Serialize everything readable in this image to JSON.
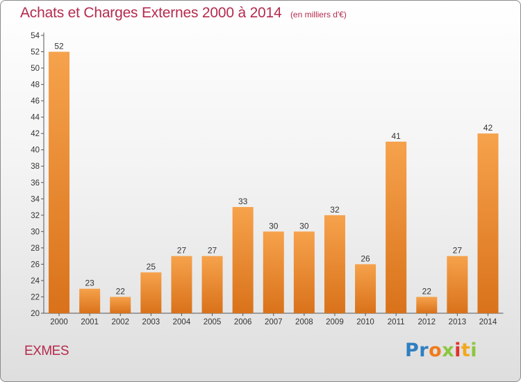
{
  "header": {
    "title": "Achats et Charges Externes 2000 à 2014",
    "unit": "(en milliers d'€)"
  },
  "commune": "EXMES",
  "logo": {
    "text": "Proxiti",
    "letters": [
      {
        "ch": "P",
        "color": "#2f7fc1"
      },
      {
        "ch": "r",
        "color": "#2f7fc1"
      },
      {
        "ch": "o",
        "color": "#f07b1b"
      },
      {
        "ch": "x",
        "color": "#8cc63f"
      },
      {
        "ch": "i",
        "color": "#e2312a"
      },
      {
        "ch": "t",
        "color": "#f2a81d"
      },
      {
        "ch": "i",
        "color": "#8cc63f"
      }
    ]
  },
  "colors": {
    "bar_light": "#f6a24c",
    "bar_dark": "#d9721a",
    "title": "#b52a4d",
    "axis": "#555555"
  },
  "chart_data": {
    "type": "bar",
    "title": "Achats et Charges Externes 2000 à 2014",
    "subtitle": "(en milliers d'€)",
    "categories": [
      "2000",
      "2001",
      "2002",
      "2003",
      "2004",
      "2005",
      "2006",
      "2007",
      "2008",
      "2009",
      "2010",
      "2011",
      "2012",
      "2013",
      "2014"
    ],
    "values": [
      52,
      23,
      22,
      25,
      27,
      27,
      33,
      30,
      30,
      32,
      26,
      41,
      22,
      27,
      42
    ],
    "ylim": [
      20,
      54
    ],
    "yticks": [
      20,
      22,
      24,
      26,
      28,
      30,
      32,
      34,
      36,
      38,
      40,
      42,
      44,
      46,
      48,
      50,
      52,
      54
    ],
    "xlabel": "",
    "ylabel": "",
    "grid": false,
    "data_labels": true
  }
}
